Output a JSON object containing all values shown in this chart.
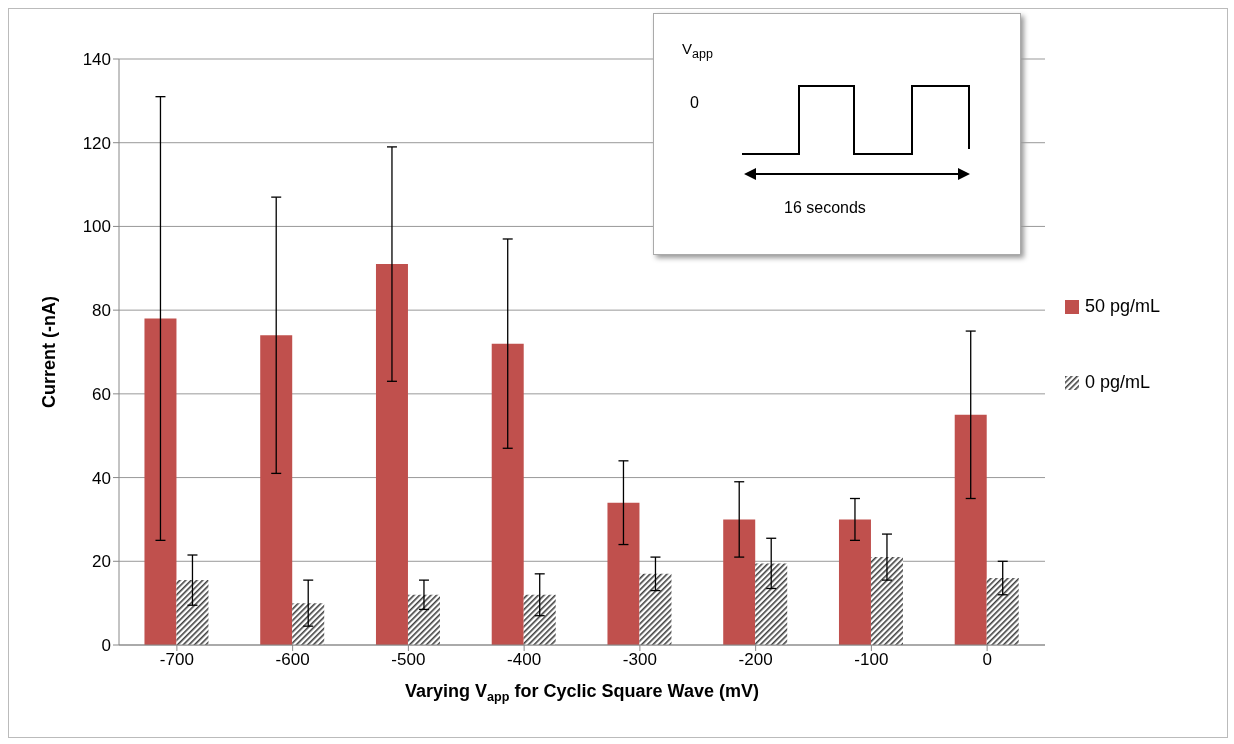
{
  "chart_data": {
    "type": "bar",
    "xlabel": "Varying V$_{app}$ for Cyclic Square Wave (mV)",
    "ylabel": "Current (-nA)",
    "categories": [
      "-700",
      "-600",
      "-500",
      "-400",
      "-300",
      "-200",
      "-100",
      "0"
    ],
    "series": [
      {
        "name": "50 pg/mL",
        "color": "#c0504d",
        "values": [
          78,
          74,
          91,
          72,
          34,
          30,
          30,
          55
        ],
        "errors": [
          53,
          33,
          28,
          25,
          10,
          9,
          5,
          20
        ]
      },
      {
        "name": "0 pg/mL",
        "color": "#404040",
        "values": [
          15.5,
          10,
          12,
          12,
          17,
          19.5,
          21,
          16
        ],
        "errors": [
          6,
          5.5,
          3.5,
          5,
          4,
          6,
          5.5,
          4
        ]
      }
    ],
    "ylim": [
      0,
      140
    ],
    "yticks": [
      0,
      20,
      40,
      60,
      80,
      100,
      120,
      140
    ],
    "grid": "y",
    "legend": "right",
    "annotations": [
      "V$_{app}$",
      "0",
      "16 seconds"
    ]
  }
}
